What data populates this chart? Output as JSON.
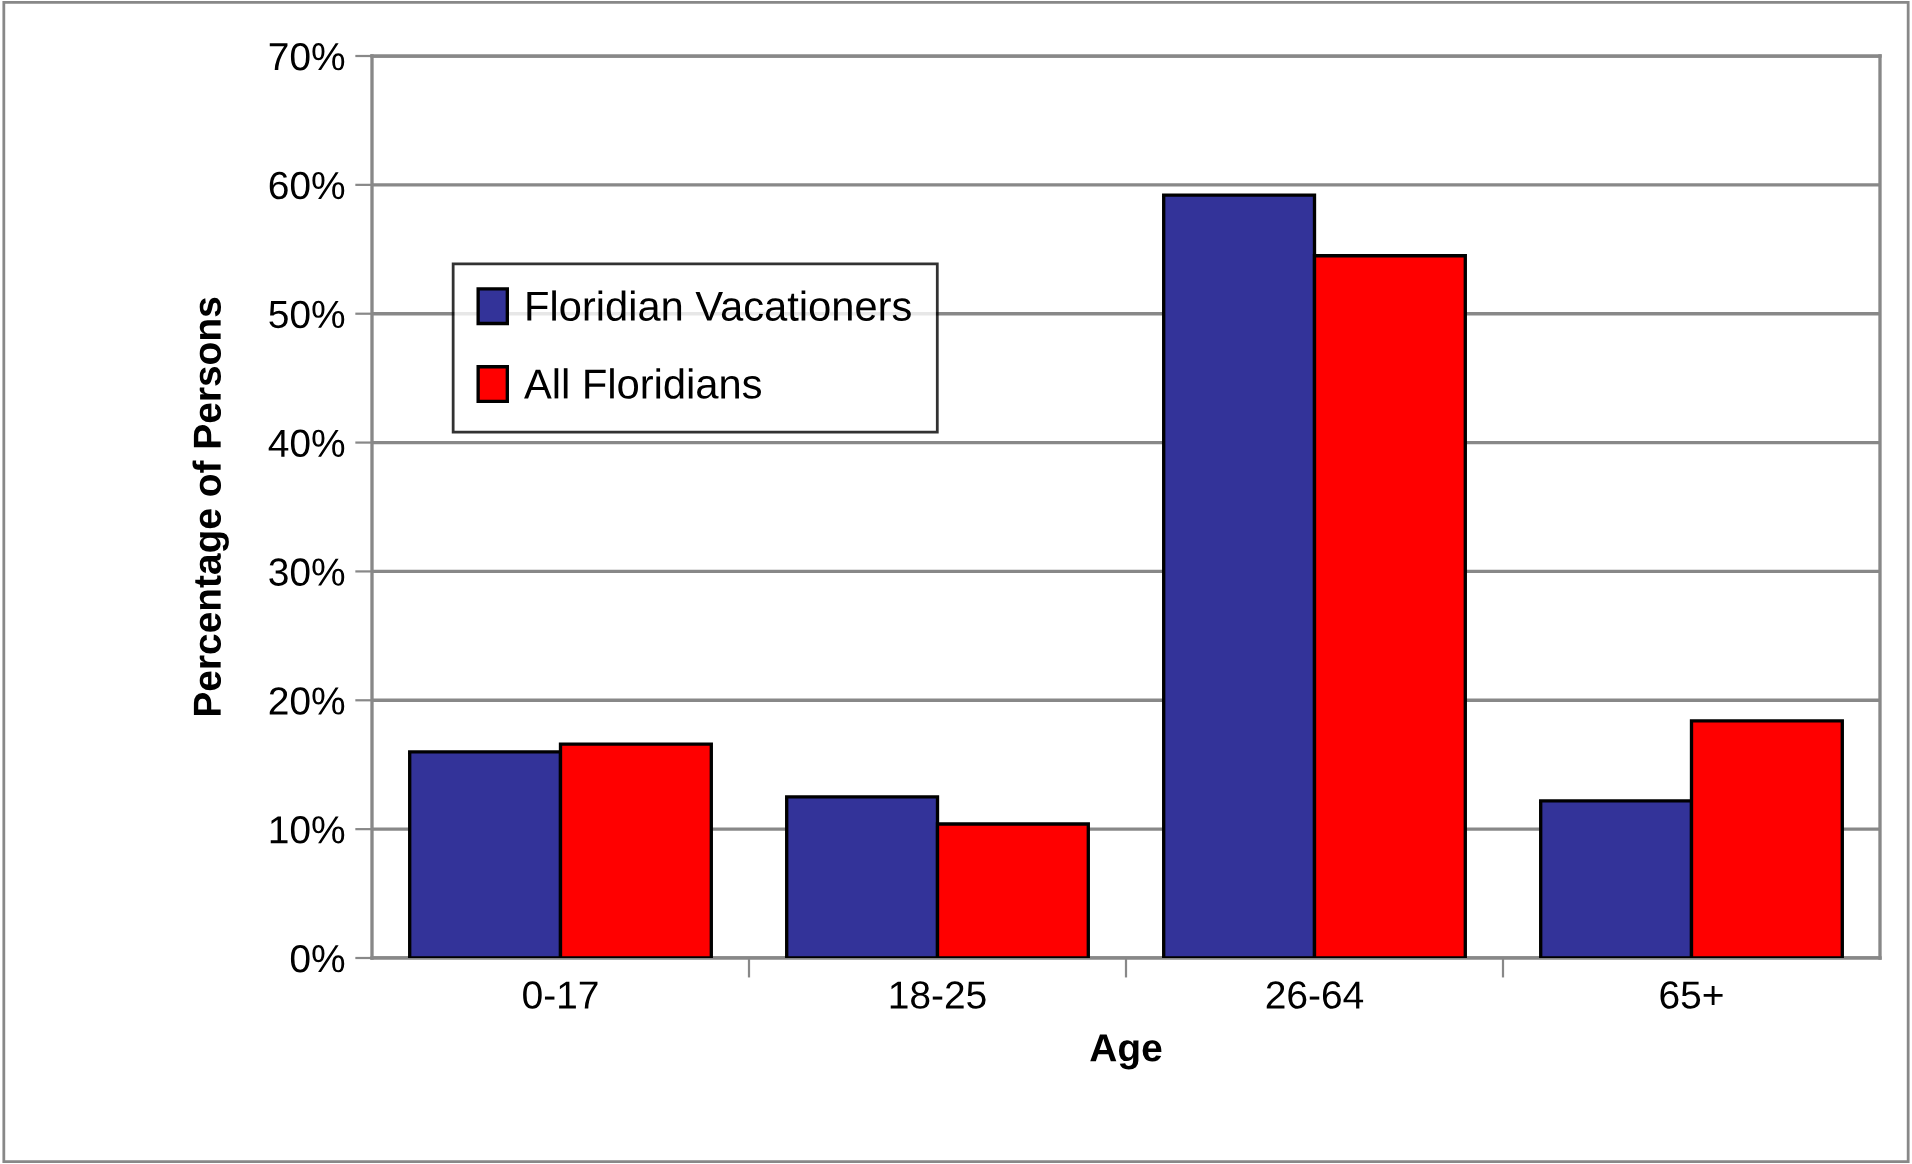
{
  "chart_data": {
    "type": "bar",
    "xlabel": "Age",
    "ylabel": "Percentage of Persons",
    "categories": [
      "0-17",
      "18-25",
      "26-64",
      "65+"
    ],
    "series": [
      {
        "name": "Floridian Vacationers",
        "color": "#333399",
        "values": [
          16.0,
          12.5,
          59.2,
          12.2
        ]
      },
      {
        "name": "All Floridians",
        "color": "#ff0000",
        "values": [
          16.6,
          10.4,
          54.5,
          18.4
        ]
      }
    ],
    "ylim": [
      0,
      70
    ],
    "yticks": [
      {
        "value": 0,
        "label": "0%"
      },
      {
        "value": 10,
        "label": "10%"
      },
      {
        "value": 20,
        "label": "20%"
      },
      {
        "value": 30,
        "label": "30%"
      },
      {
        "value": 40,
        "label": "40%"
      },
      {
        "value": 50,
        "label": "50%"
      },
      {
        "value": 60,
        "label": "60%"
      },
      {
        "value": 70,
        "label": "70%"
      }
    ],
    "grid": "y",
    "legend": "left"
  }
}
